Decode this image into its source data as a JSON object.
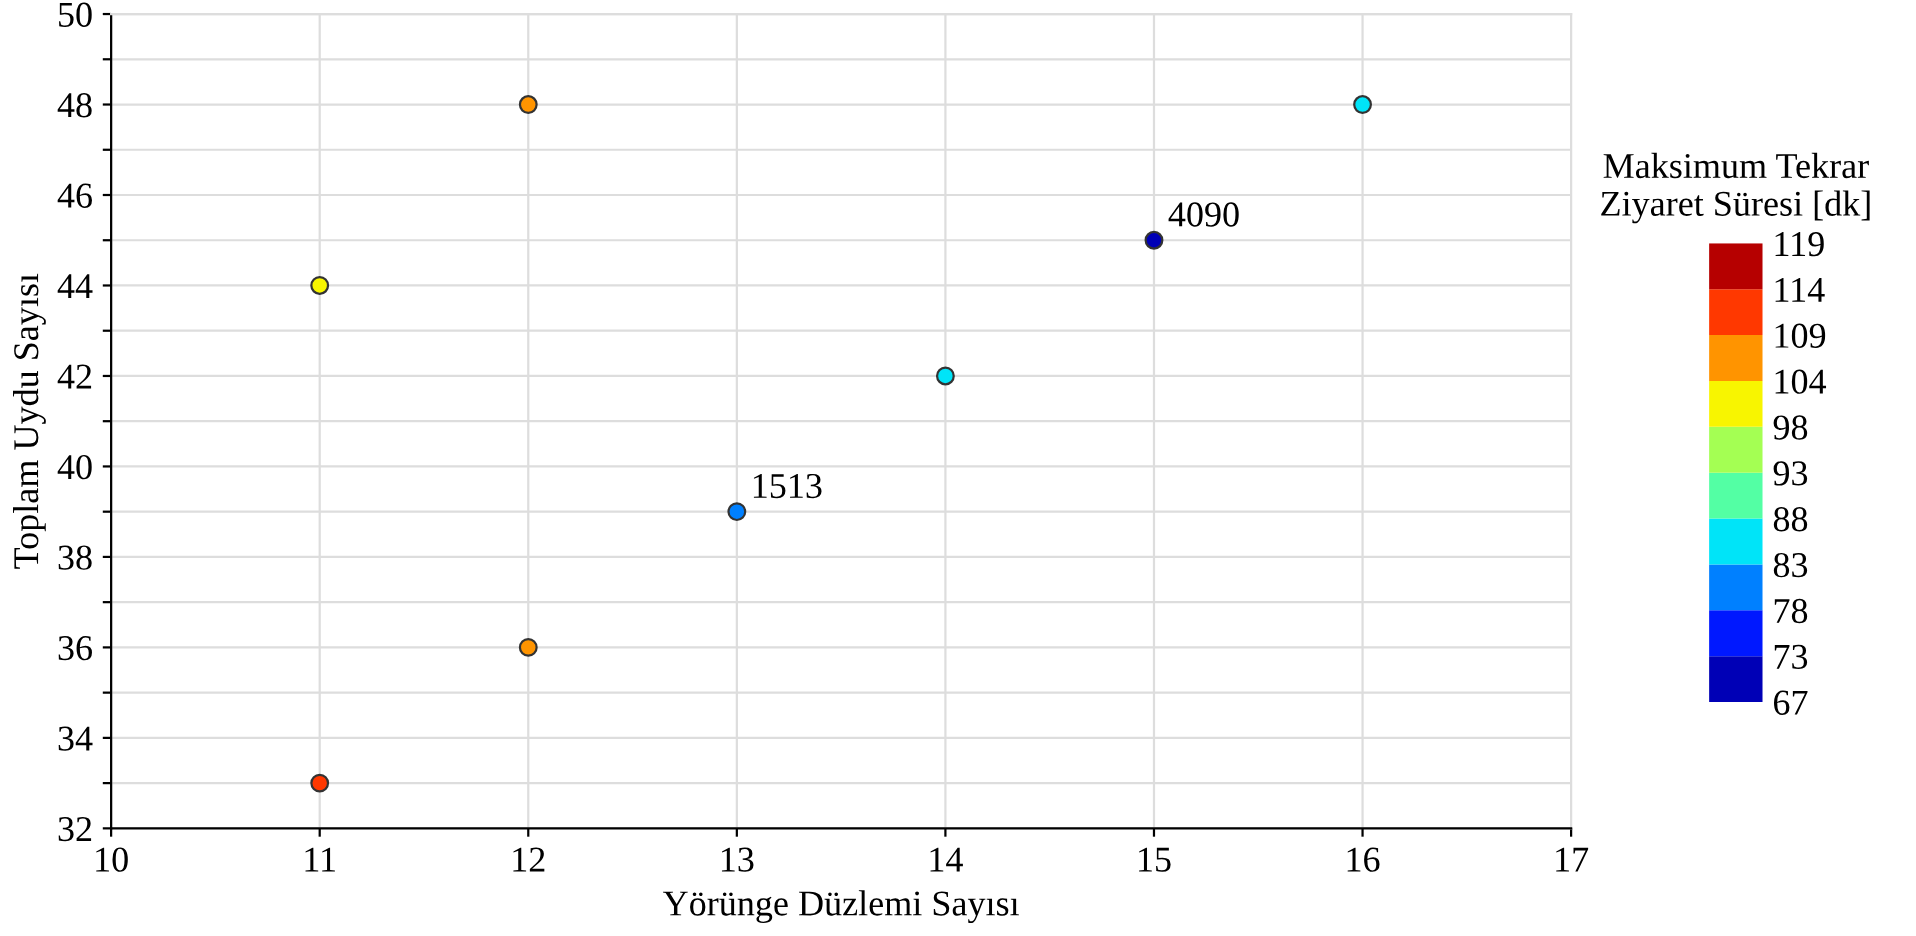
{
  "chart_data": {
    "type": "scatter",
    "xlabel": "Yörünge Düzlemi Sayısı",
    "ylabel": "Toplam Uydu Sayısı",
    "clabel": "Maksimum Tekrar\nZiyaret Süresi [dk]",
    "series": [
      {
        "x": [
          11,
          11,
          12,
          12,
          13,
          14,
          15,
          16
        ],
        "values": [
          33,
          44,
          48,
          36,
          39,
          42,
          45,
          48
        ],
        "cvalues": [
          111,
          100,
          106,
          106,
          80,
          85,
          70,
          85
        ]
      }
    ],
    "annotations": [
      {
        "text": "1513",
        "x": 13,
        "y": 39
      },
      {
        "text": "4090",
        "x": 15,
        "y": 45
      }
    ],
    "xlim": [
      10,
      17
    ],
    "xticks": [
      10,
      11,
      12,
      13,
      14,
      15,
      16,
      17
    ],
    "ylim": [
      32,
      50
    ],
    "yticks": [
      32,
      {
        "value": 33,
        "label": null
      },
      34,
      {
        "value": 35,
        "label": null
      },
      36,
      {
        "value": 37,
        "label": null
      },
      38,
      {
        "value": 39,
        "label": null
      },
      40,
      {
        "value": 41,
        "label": null
      },
      42,
      {
        "value": 43,
        "label": null
      },
      44,
      {
        "value": 45,
        "label": null
      },
      46,
      {
        "value": 47,
        "label": null
      },
      48,
      {
        "value": 49,
        "label": null
      },
      50
    ],
    "clim": [
      67,
      119
    ],
    "cticks": [
      67,
      73,
      78,
      83,
      88,
      93,
      98,
      104,
      109,
      114,
      119
    ],
    "grid": true,
    "marker": "circle",
    "legend": false
  }
}
